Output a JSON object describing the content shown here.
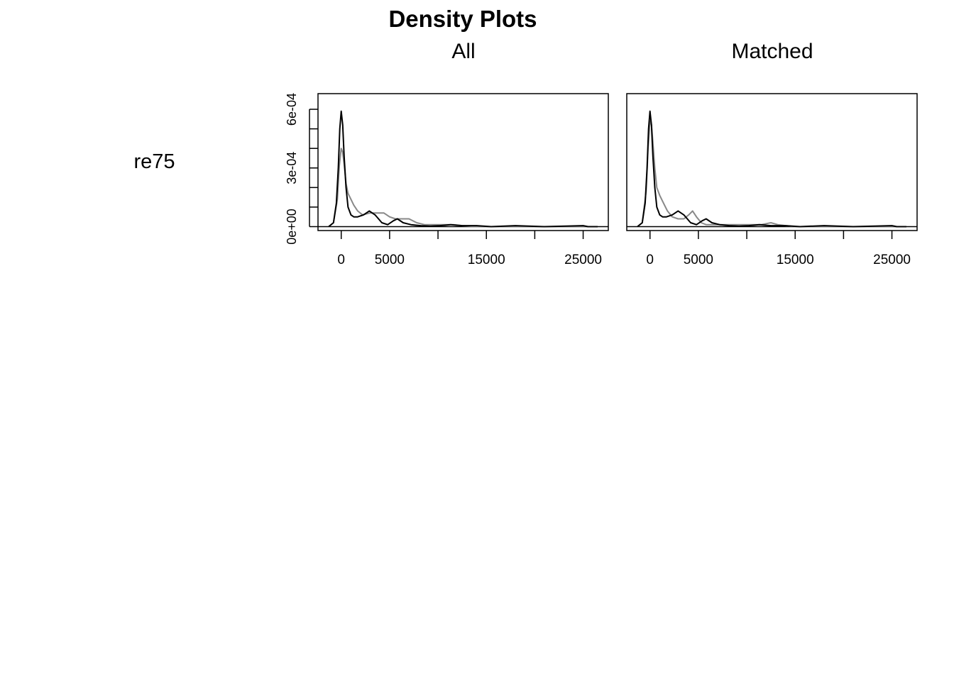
{
  "title": "Density Plots",
  "variable_label": "re75",
  "colors": {
    "treated": "#000000",
    "control": "#888888"
  },
  "chart_data": [
    {
      "type": "line",
      "title": "All",
      "xlim": [
        -2400,
        27600
      ],
      "ylim": [
        -2e-05,
        0.00068
      ],
      "x_ticks": [
        0,
        5000,
        10000,
        15000,
        20000,
        25000
      ],
      "x_tick_labels": [
        "0",
        "5000",
        "",
        "15000",
        "",
        "25000"
      ],
      "y_ticks": [
        0,
        0.0001,
        0.0002,
        0.0003,
        0.0004,
        0.0005,
        0.0006
      ],
      "y_tick_labels": [
        "0e+00",
        "",
        "",
        "3e-04",
        "",
        "",
        "6e-04"
      ],
      "series": [
        {
          "color": "#888888",
          "x": [
            -1300,
            -800,
            -400,
            -200,
            0,
            150,
            300,
            500,
            700,
            1000,
            1300,
            1700,
            2200,
            3000,
            3700,
            4400,
            5000,
            5600,
            6200,
            7000,
            7800,
            8600,
            9600,
            10600,
            11600,
            12500,
            14000,
            18000,
            25000,
            26500
          ],
          "y": [
            0,
            2e-05,
            0.00014,
            0.00031,
            0.0004,
            0.00038,
            0.00032,
            0.00022,
            0.00017,
            0.00014,
            0.00011,
            8e-05,
            6e-05,
            7e-05,
            7e-05,
            7e-05,
            5e-05,
            4e-05,
            4e-05,
            4e-05,
            2e-05,
            1e-05,
            1e-05,
            1e-05,
            1e-05,
            5e-06,
            0,
            0,
            0,
            0
          ]
        },
        {
          "color": "#000000",
          "x": [
            -1300,
            -800,
            -500,
            -300,
            -150,
            0,
            150,
            300,
            500,
            700,
            1000,
            1300,
            1700,
            2300,
            2900,
            3500,
            4200,
            4800,
            5400,
            5800,
            6400,
            7200,
            8200,
            9200,
            10200,
            11300,
            12500,
            14000,
            15500,
            18000,
            21000,
            25000,
            25500,
            26500
          ],
          "y": [
            0,
            2e-05,
            0.00012,
            0.0003,
            0.0005,
            0.00059,
            0.00052,
            0.00036,
            0.0002,
            0.0001,
            6e-05,
            5e-05,
            5e-05,
            6e-05,
            8e-05,
            6e-05,
            2e-05,
            1e-05,
            3e-05,
            4e-05,
            2e-05,
            1e-05,
            5e-06,
            3e-06,
            5e-06,
            1e-05,
            5e-06,
            5e-06,
            0,
            5e-06,
            0,
            5e-06,
            0,
            0
          ]
        }
      ]
    },
    {
      "type": "line",
      "title": "Matched",
      "xlim": [
        -2400,
        27600
      ],
      "ylim": [
        -2e-05,
        0.00068
      ],
      "x_ticks": [
        0,
        5000,
        10000,
        15000,
        20000,
        25000
      ],
      "x_tick_labels": [
        "0",
        "5000",
        "",
        "15000",
        "",
        "25000"
      ],
      "y_ticks": [
        0,
        0.0001,
        0.0002,
        0.0003,
        0.0004,
        0.0005,
        0.0006
      ],
      "series": [
        {
          "color": "#888888",
          "x": [
            -1300,
            -800,
            -400,
            -200,
            0,
            150,
            300,
            500,
            700,
            1000,
            1400,
            1800,
            2300,
            2900,
            3500,
            4000,
            4400,
            4800,
            5300,
            5800,
            6500,
            7200,
            8000,
            8800,
            9600,
            10500,
            11500,
            12500,
            13200,
            14000,
            15000,
            18000,
            25000,
            26500
          ],
          "y": [
            0,
            2e-05,
            0.00018,
            0.0004,
            0.00054,
            0.00052,
            0.00043,
            0.0003,
            0.0002,
            0.00016,
            0.00012,
            8e-05,
            5e-05,
            4e-05,
            4e-05,
            6e-05,
            8e-05,
            5e-05,
            2e-05,
            1e-05,
            1e-05,
            1e-05,
            1e-05,
            1e-05,
            1e-05,
            1e-05,
            1e-05,
            2e-05,
            1e-05,
            5e-06,
            0,
            0,
            0,
            0
          ]
        },
        {
          "color": "#000000",
          "x": [
            -1300,
            -800,
            -500,
            -300,
            -150,
            0,
            150,
            300,
            500,
            700,
            1000,
            1300,
            1700,
            2300,
            2900,
            3500,
            4200,
            4800,
            5400,
            5800,
            6400,
            7200,
            8200,
            9200,
            10200,
            11300,
            12500,
            14000,
            15500,
            18000,
            21000,
            25000,
            25500,
            26500
          ],
          "y": [
            0,
            2e-05,
            0.00012,
            0.0003,
            0.0005,
            0.00059,
            0.00052,
            0.00036,
            0.0002,
            0.0001,
            6e-05,
            5e-05,
            5e-05,
            6e-05,
            8e-05,
            6e-05,
            2e-05,
            1e-05,
            3e-05,
            4e-05,
            2e-05,
            1e-05,
            5e-06,
            3e-06,
            5e-06,
            1e-05,
            5e-06,
            5e-06,
            0,
            5e-06,
            0,
            5e-06,
            0,
            0
          ]
        }
      ]
    }
  ]
}
